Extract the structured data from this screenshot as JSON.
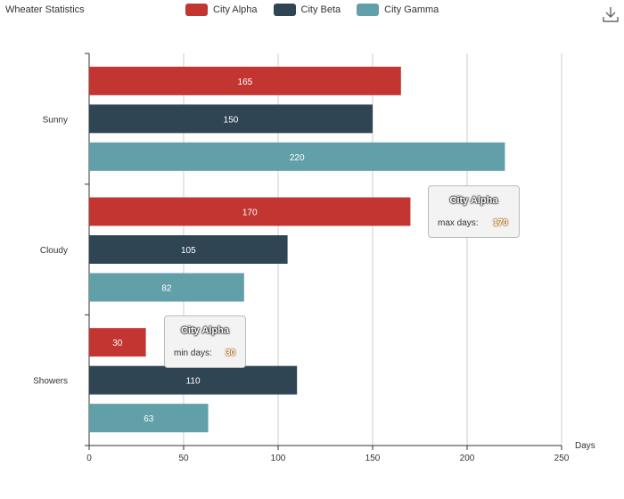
{
  "chart_data": {
    "type": "bar",
    "orientation": "horizontal",
    "title": "Wheater Statistics",
    "categories": [
      "Sunny",
      "Cloudy",
      "Showers"
    ],
    "series": [
      {
        "name": "City Alpha",
        "color": "#c23531",
        "values": [
          165,
          170,
          30
        ]
      },
      {
        "name": "City Beta",
        "color": "#2f4554",
        "values": [
          150,
          105,
          110
        ]
      },
      {
        "name": "City Gamma",
        "color": "#61a0a8",
        "values": [
          220,
          82,
          63
        ]
      }
    ],
    "xlabel": "Days",
    "xlim": [
      0,
      250
    ],
    "xticks": [
      "0",
      "50",
      "100",
      "150",
      "200",
      "250"
    ],
    "grid": true,
    "legend_position": "top-center",
    "annotations": [
      {
        "series": "City Alpha",
        "label": "max days:",
        "value": "170"
      },
      {
        "series": "City Alpha",
        "label": "min days:",
        "value": "30"
      }
    ]
  },
  "toolbar": {
    "download_icon": "download-icon"
  }
}
